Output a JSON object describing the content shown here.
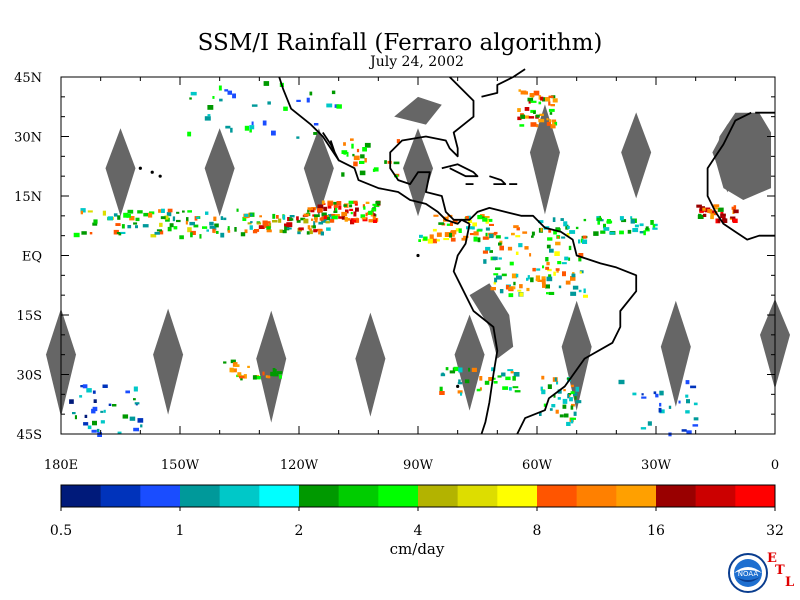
{
  "title": "SSM/I Rainfall (Ferraro algorithm)",
  "subtitle": "July 24, 2002",
  "map": {
    "lat_labels": [
      "45N",
      "30N",
      "15N",
      "EQ",
      "15S",
      "30S",
      "45S"
    ],
    "lon_labels": [
      "180E",
      "150W",
      "120W",
      "90W",
      "60W",
      "30W",
      "0"
    ],
    "lat_range": [
      -45,
      45
    ],
    "lon_range": [
      -180,
      0
    ],
    "no_data_color": "#666666",
    "coastline_color": "#000000"
  },
  "colorbar": {
    "unit": "cm/day",
    "tick_labels": [
      "0.5",
      "1",
      "2",
      "4",
      "8",
      "16",
      "32"
    ],
    "colors": [
      "#001a7a",
      "#0033bb",
      "#1a4dff",
      "#00999a",
      "#00c8c8",
      "#00ffff",
      "#009900",
      "#00cc00",
      "#00ff00",
      "#b3b300",
      "#dddd00",
      "#ffff00",
      "#ff5500",
      "#ff8000",
      "#ffa000",
      "#990000",
      "#cc0000",
      "#ff0000"
    ]
  },
  "logo": {
    "noaa_text": "NOAA",
    "etl_letters": [
      "E",
      "T",
      "L"
    ]
  }
}
